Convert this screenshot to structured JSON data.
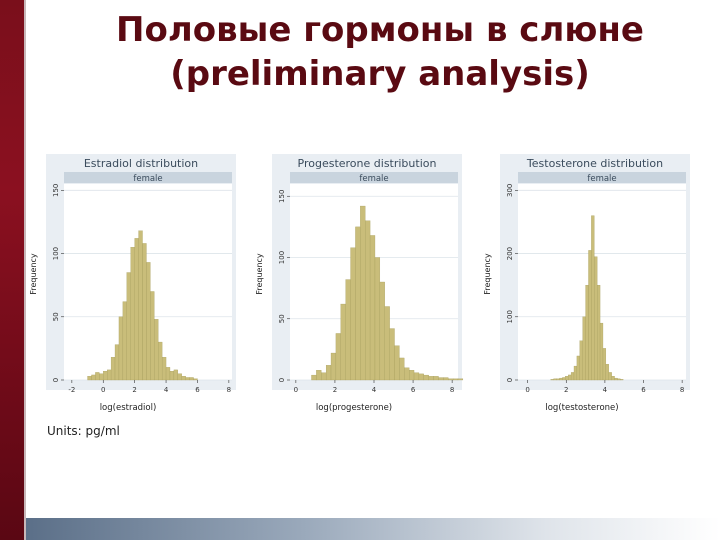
{
  "slide": {
    "title_line1": "Половые гормоны в слюне",
    "title_line2": "(preliminary analysis)",
    "units": "Units: pg/ml"
  },
  "colors": {
    "bar": "#c9bd7a",
    "bar_edge": "#a39a58",
    "plot_bg": "#ffffff",
    "outer_bg": "#e9eef3",
    "title_color": "#5a0a12"
  },
  "chart_data": [
    {
      "type": "bar",
      "title": "Estradiol distribution",
      "subtitle": "female",
      "xlabel": "log(estradiol)",
      "ylabel": "Frequency",
      "xlim": [
        -2.5,
        8.2
      ],
      "ylim": [
        0,
        155
      ],
      "xticks": [
        -2,
        0,
        2,
        4,
        6,
        8
      ],
      "yticks": [
        0,
        50,
        100,
        150
      ],
      "bin_width": 0.25,
      "bin_start": -1.0,
      "values": [
        3,
        4,
        6,
        5,
        7,
        8,
        18,
        28,
        50,
        62,
        85,
        105,
        112,
        118,
        108,
        93,
        70,
        48,
        30,
        18,
        10,
        7,
        8,
        5,
        3,
        2,
        2,
        1
      ]
    },
    {
      "type": "bar",
      "title": "Progesterone distribution",
      "subtitle": "female",
      "xlabel": "log(progesterone)",
      "ylabel": "Frequency",
      "xlim": [
        -0.3,
        8.3
      ],
      "ylim": [
        0,
        160
      ],
      "xticks": [
        0,
        2,
        4,
        6,
        8
      ],
      "yticks": [
        0,
        50,
        100,
        150
      ],
      "bin_width": 0.25,
      "bin_start": 0.8,
      "values": [
        4,
        8,
        6,
        12,
        22,
        38,
        62,
        82,
        108,
        125,
        142,
        130,
        118,
        100,
        80,
        60,
        42,
        28,
        18,
        10,
        8,
        6,
        5,
        4,
        3,
        3,
        2,
        2,
        1,
        1,
        1
      ]
    },
    {
      "type": "bar",
      "title": "Testosterone distribution",
      "subtitle": "female",
      "xlabel": "log(testosterone)",
      "ylabel": "Frequency",
      "xlim": [
        -0.5,
        8.2
      ],
      "ylim": [
        0,
        310
      ],
      "xticks": [
        0,
        2,
        4,
        6,
        8
      ],
      "yticks": [
        0,
        100,
        200,
        300
      ],
      "bin_width": 0.15,
      "bin_start": 1.2,
      "values": [
        1,
        2,
        2,
        3,
        4,
        6,
        8,
        12,
        22,
        38,
        62,
        100,
        150,
        205,
        260,
        195,
        150,
        90,
        50,
        25,
        12,
        6,
        3,
        2,
        1
      ]
    }
  ]
}
